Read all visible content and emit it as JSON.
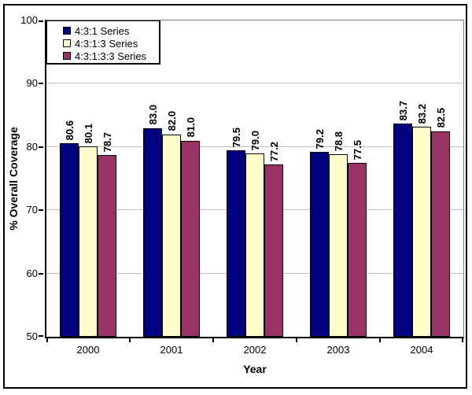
{
  "chart_data": {
    "type": "bar",
    "title": "",
    "xlabel": "Year",
    "ylabel": "% Overall Coverage",
    "ylim": [
      50,
      100
    ],
    "ytick_step": 10,
    "grid": true,
    "legend_position": "top-left-inside",
    "data_labels_style": "rotated-90-bold",
    "categories": [
      "2000",
      "2001",
      "2002",
      "2003",
      "2004"
    ],
    "series": [
      {
        "name": "4:3:1 Series",
        "color": "#000080",
        "values": [
          80.6,
          83.0,
          79.5,
          79.2,
          83.7
        ]
      },
      {
        "name": "4:3:1:3 Series",
        "color": "#FFFFCC",
        "values": [
          80.1,
          82.0,
          79.0,
          78.8,
          83.2
        ]
      },
      {
        "name": "4:3:1:3:3 Series",
        "color": "#993366",
        "values": [
          78.7,
          81.0,
          77.2,
          77.5,
          82.5
        ]
      }
    ],
    "colors": {
      "gridline": "#C0C0C0",
      "plot_border": "#808080",
      "axis": "#000000",
      "background": "#FFFFFF"
    }
  }
}
